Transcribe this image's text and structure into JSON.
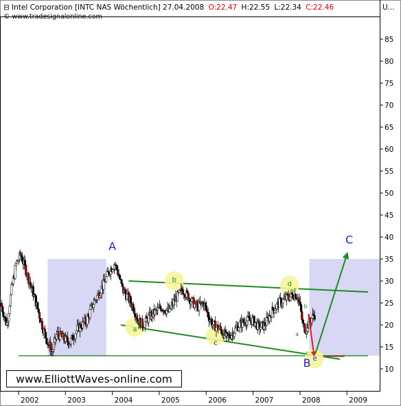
{
  "header": {
    "title_prefix": "Intel Corporation [INTC NAS  Wöchentlich] 27.04.2008",
    "open": "O:22.47",
    "high": "H:22.55",
    "low": "L:22.34",
    "close": "C:22.46",
    "source": "© www.tradesignalonline.com",
    "corner": "U..."
  },
  "watermark": "www.ElliottWaves-online.com",
  "colors": {
    "up_candle": "#ffffff",
    "down_candle": "#000000",
    "down_body_red": "#b00000",
    "shade": "#d8d8f4",
    "channel": "#1f8a1f",
    "wave_label": "#1f1fd0",
    "circle": "#f5f59a",
    "arrow_down": "#e02020",
    "arrow_up": "#1f8a1f"
  },
  "chart_data": {
    "type": "candlestick",
    "x_unit": "year",
    "xlim": [
      2001.62,
      2009.7
    ],
    "ylim": [
      5,
      90
    ],
    "x_ticks": [
      "2002",
      "2003",
      "2004",
      "2005",
      "2006",
      "2007",
      "2008",
      "2009"
    ],
    "y_ticks": [
      10,
      15,
      20,
      25,
      30,
      35,
      40,
      45,
      50,
      55,
      60,
      65,
      70,
      75,
      80,
      85
    ],
    "price_path": [
      {
        "x": 2001.62,
        "y": 25
      },
      {
        "x": 2001.75,
        "y": 20
      },
      {
        "x": 2001.85,
        "y": 28
      },
      {
        "x": 2001.95,
        "y": 34
      },
      {
        "x": 2002.05,
        "y": 36
      },
      {
        "x": 2002.2,
        "y": 31
      },
      {
        "x": 2002.35,
        "y": 26
      },
      {
        "x": 2002.5,
        "y": 20
      },
      {
        "x": 2002.62,
        "y": 16
      },
      {
        "x": 2002.72,
        "y": 14
      },
      {
        "x": 2002.82,
        "y": 18
      },
      {
        "x": 2002.95,
        "y": 17
      },
      {
        "x": 2003.1,
        "y": 16
      },
      {
        "x": 2003.25,
        "y": 19
      },
      {
        "x": 2003.45,
        "y": 21
      },
      {
        "x": 2003.6,
        "y": 25
      },
      {
        "x": 2003.8,
        "y": 29
      },
      {
        "x": 2003.92,
        "y": 32
      },
      {
        "x": 2004.05,
        "y": 34
      },
      {
        "x": 2004.12,
        "y": 32
      },
      {
        "x": 2004.22,
        "y": 28
      },
      {
        "x": 2004.35,
        "y": 26
      },
      {
        "x": 2004.45,
        "y": 24
      },
      {
        "x": 2004.55,
        "y": 21
      },
      {
        "x": 2004.65,
        "y": 20
      },
      {
        "x": 2004.8,
        "y": 22
      },
      {
        "x": 2004.92,
        "y": 23
      },
      {
        "x": 2005.05,
        "y": 24
      },
      {
        "x": 2005.2,
        "y": 23
      },
      {
        "x": 2005.35,
        "y": 26
      },
      {
        "x": 2005.5,
        "y": 28
      },
      {
        "x": 2005.65,
        "y": 26
      },
      {
        "x": 2005.8,
        "y": 24
      },
      {
        "x": 2005.95,
        "y": 25
      },
      {
        "x": 2006.05,
        "y": 22
      },
      {
        "x": 2006.15,
        "y": 20
      },
      {
        "x": 2006.3,
        "y": 19
      },
      {
        "x": 2006.45,
        "y": 17
      },
      {
        "x": 2006.55,
        "y": 18
      },
      {
        "x": 2006.7,
        "y": 20
      },
      {
        "x": 2006.85,
        "y": 21
      },
      {
        "x": 2007.0,
        "y": 21
      },
      {
        "x": 2007.12,
        "y": 19.5
      },
      {
        "x": 2007.25,
        "y": 20
      },
      {
        "x": 2007.4,
        "y": 23
      },
      {
        "x": 2007.55,
        "y": 25
      },
      {
        "x": 2007.7,
        "y": 26
      },
      {
        "x": 2007.8,
        "y": 26.5
      },
      {
        "x": 2007.9,
        "y": 27
      },
      {
        "x": 2007.97,
        "y": 26
      },
      {
        "x": 2008.02,
        "y": 23
      },
      {
        "x": 2008.06,
        "y": 20
      },
      {
        "x": 2008.12,
        "y": 19
      },
      {
        "x": 2008.2,
        "y": 20.5
      },
      {
        "x": 2008.28,
        "y": 22
      },
      {
        "x": 2008.32,
        "y": 22.46
      }
    ],
    "support_line": {
      "y": 13,
      "x_start": 2002.0,
      "x_end": 2009.45
    },
    "shaded_regions": [
      {
        "x_start": 2002.62,
        "x_end": 2003.87,
        "y_low": 13,
        "y_high": 35
      },
      {
        "x_start": 2008.2,
        "x_end": 2009.7,
        "y_low": 13,
        "y_high": 35
      }
    ],
    "trendlines": [
      {
        "x_start": 2004.35,
        "y_start": 30,
        "x_end": 2009.45,
        "y_end": 27.5
      },
      {
        "x_start": 2004.18,
        "y_start": 20,
        "x_end": 2008.85,
        "y_end": 12.2
      }
    ],
    "extension_line": {
      "x_start": 2008.35,
      "x_end": 2008.95,
      "y": 12.9
    },
    "wave_labels": [
      {
        "text": "A",
        "x": 2004.0,
        "y": 37,
        "size": "large",
        "color": "#1f1fd0"
      },
      {
        "text": "B",
        "x": 2008.15,
        "y": 10.5,
        "size": "large",
        "color": "#1f1fd0"
      },
      {
        "text": "C",
        "x": 2009.05,
        "y": 38.5,
        "size": "large",
        "color": "#1f1fd0"
      },
      {
        "text": "a",
        "x": 2004.48,
        "y": 18.5,
        "size": "small",
        "color": "#1f8a1f"
      },
      {
        "text": "b",
        "x": 2005.32,
        "y": 29.8,
        "size": "small",
        "color": "#1f8a1f"
      },
      {
        "text": "c",
        "x": 2006.2,
        "y": 15.5,
        "size": "small",
        "color": "#1f1fd0"
      },
      {
        "text": "d",
        "x": 2007.78,
        "y": 28.8,
        "size": "small",
        "color": "#1f8a1f"
      },
      {
        "text": "e",
        "x": 2008.32,
        "y": 11.9,
        "size": "small",
        "color": "#1f1fd0"
      },
      {
        "text": "a",
        "x": 2007.94,
        "y": 17.5,
        "size": "tiny",
        "color": "#1f8a1f"
      },
      {
        "text": "b",
        "x": 2008.12,
        "y": 23.8,
        "size": "tiny",
        "color": "#1f8a1f"
      },
      {
        "text": "c",
        "x": 2008.15,
        "y": 13.2,
        "size": "tiny",
        "color": "#1f8a1f"
      }
    ],
    "highlight_circles": [
      {
        "x": 2004.48,
        "y": 19.5
      },
      {
        "x": 2005.32,
        "y": 30
      },
      {
        "x": 2006.2,
        "y": 17.5
      },
      {
        "x": 2007.78,
        "y": 29
      },
      {
        "x": 2008.3,
        "y": 12.3
      }
    ],
    "arrows": [
      {
        "x_start": 2008.18,
        "y_start": 22.5,
        "x_end": 2008.3,
        "y_end": 13.2,
        "color": "#e02020"
      },
      {
        "x_start": 2008.33,
        "y_start": 13.5,
        "x_end": 2009.0,
        "y_end": 36,
        "color": "#1f8a1f"
      }
    ]
  }
}
